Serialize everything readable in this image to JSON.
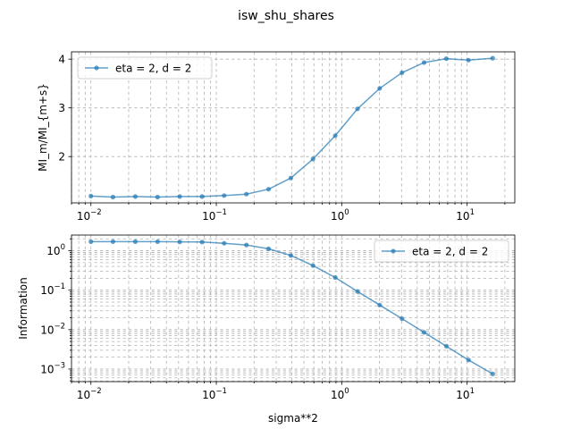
{
  "figure": {
    "title": "isw_shu_shares"
  },
  "colors": {
    "series": "#1f77b4",
    "grid": "#b0b0b0"
  },
  "chart_data": [
    {
      "type": "line",
      "title": "isw_shu_shares",
      "xlabel": "",
      "ylabel": "MI_m/MI_{m+s}",
      "xscale": "log",
      "yscale": "linear",
      "xlim": [
        0.007,
        24
      ],
      "ylim": [
        1.05,
        4.15
      ],
      "grid": true,
      "legend": "upper left",
      "x_ticks": [
        0.01,
        0.1,
        1,
        10
      ],
      "x_tick_labels": [
        "10",
        "10",
        "10",
        "10"
      ],
      "x_tick_exponents": [
        "−2",
        "−1",
        "0",
        "1"
      ],
      "y_ticks": [
        2,
        3,
        4
      ],
      "y_tick_labels": [
        "2",
        "3",
        "4"
      ],
      "series": [
        {
          "name": "eta = 2, d = 2",
          "x": [
            0.01,
            0.015,
            0.0226,
            0.034,
            0.0511,
            0.0768,
            0.1155,
            0.1737,
            0.2612,
            0.3927,
            0.5905,
            0.8879,
            1.3351,
            2.0075,
            3.0185,
            4.5387,
            6.8245,
            10.2615,
            16.0
          ],
          "values": [
            1.19,
            1.17,
            1.18,
            1.17,
            1.18,
            1.18,
            1.2,
            1.23,
            1.33,
            1.56,
            1.95,
            2.43,
            2.98,
            3.4,
            3.72,
            3.93,
            4.01,
            3.98,
            4.02
          ]
        }
      ]
    },
    {
      "type": "line",
      "xlabel": "sigma**2",
      "ylabel": "Information",
      "xscale": "log",
      "yscale": "log",
      "xlim": [
        0.007,
        24
      ],
      "ylim": [
        0.00048,
        2.5
      ],
      "grid": true,
      "legend": "upper right",
      "x_ticks": [
        0.01,
        0.1,
        1,
        10
      ],
      "x_tick_labels": [
        "10",
        "10",
        "10",
        "10"
      ],
      "x_tick_exponents": [
        "−2",
        "−1",
        "0",
        "1"
      ],
      "y_ticks": [
        0.001,
        0.01,
        0.1,
        1
      ],
      "y_tick_labels": [
        "10",
        "10",
        "10",
        "10"
      ],
      "y_tick_exponents": [
        "−3",
        "−2",
        "−1",
        "0"
      ],
      "series": [
        {
          "name": "eta = 2, d = 2",
          "x": [
            0.01,
            0.015,
            0.0226,
            0.034,
            0.0511,
            0.0768,
            0.1155,
            0.1737,
            0.2612,
            0.3927,
            0.5905,
            0.8879,
            1.3351,
            2.0075,
            3.0185,
            4.5387,
            6.8245,
            10.2615,
            16.0
          ],
          "values": [
            1.7,
            1.7,
            1.7,
            1.7,
            1.68,
            1.66,
            1.55,
            1.4,
            1.12,
            0.76,
            0.42,
            0.21,
            0.093,
            0.042,
            0.019,
            0.0085,
            0.0038,
            0.0017,
            0.00075
          ]
        }
      ]
    }
  ]
}
